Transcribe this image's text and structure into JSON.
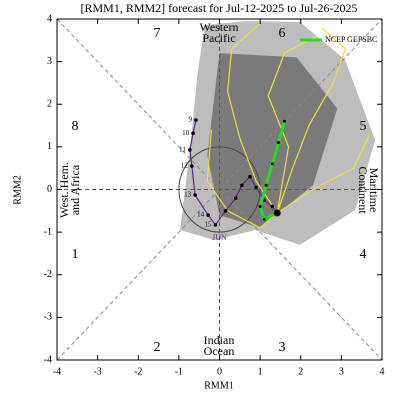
{
  "chart_data": {
    "type": "mjo-phase",
    "title": "[RMM1, RMM2] forecast for Jul-12-2025 to Jul-26-2025",
    "x_label": "RMM1",
    "y_label": "RMM2",
    "xlim": [
      -4,
      4
    ],
    "ylim": [
      -4,
      4
    ],
    "xticks": [
      -4,
      -3,
      -2,
      -1,
      0,
      1,
      2,
      3,
      4
    ],
    "yticks": [
      -4,
      -3,
      -2,
      -1,
      0,
      1,
      2,
      3,
      4
    ],
    "phases": [
      1,
      2,
      3,
      4,
      5,
      6,
      7,
      8
    ],
    "regions": [
      "West. Hem. and Africa",
      "Indian Ocean",
      "Maritime Continent",
      "Western Pacific"
    ],
    "spread": [
      {
        "color": "#bdbdbd",
        "x": [
          -0.36,
          0.63,
          1.98,
          3.09,
          3.83,
          3.34,
          1.98,
          0.87,
          -0.11,
          -0.97,
          -0.73,
          -0.53
        ],
        "y": [
          3.86,
          3.95,
          3.93,
          3.04,
          1.16,
          -0.48,
          -1.3,
          -0.95,
          -1.19,
          -0.95,
          0.93,
          2.8
        ]
      },
      {
        "color": "#7a7a7a",
        "x": [
          0.0,
          1.9,
          2.9,
          2.3,
          1.0,
          0.0,
          -0.3
        ],
        "y": [
          3.2,
          3.1,
          1.9,
          0.1,
          -0.9,
          -0.6,
          0.8
        ]
      }
    ],
    "members": [
      {
        "x": [
          1.42,
          1.8,
          2.2,
          2.8,
          3.1,
          2.5
        ],
        "y": [
          -0.55,
          0.5,
          1.5,
          2.5,
          3.3,
          3.8
        ]
      },
      {
        "x": [
          1.42,
          0.9,
          0.5,
          0.2,
          0.3,
          1.0
        ],
        "y": [
          -0.55,
          0.2,
          1.2,
          2.3,
          3.3,
          3.9
        ]
      },
      {
        "x": [
          1.42,
          2.3,
          3.3,
          3.7
        ],
        "y": [
          -0.55,
          0.0,
          0.5,
          1.3
        ]
      },
      {
        "x": [
          1.42,
          1.0,
          0.2,
          -0.3,
          -0.2
        ],
        "y": [
          -0.55,
          -0.9,
          -0.5,
          0.2,
          1.4
        ]
      },
      {
        "x": [
          1.42,
          1.7,
          1.2,
          1.6,
          2.4
        ],
        "y": [
          -0.55,
          1.0,
          2.2,
          3.2,
          3.6
        ]
      }
    ],
    "member_color": "#f0e040",
    "observed": {
      "color": "#5a2a82",
      "month": "JUN",
      "x": [
        -0.58,
        -0.65,
        -0.73,
        -0.68,
        -0.6,
        -0.28,
        -0.1,
        0.15,
        0.4,
        0.55,
        0.75,
        0.9,
        1.1,
        1.3,
        1.42
      ],
      "y": [
        1.63,
        1.32,
        0.93,
        0.55,
        -0.13,
        -0.6,
        -0.83,
        -0.5,
        -0.2,
        0.1,
        0.3,
        0.05,
        -0.25,
        -0.4,
        -0.55
      ],
      "labels": [
        9,
        10,
        11,
        12,
        13,
        14,
        15,
        null,
        null,
        null,
        null,
        null,
        null,
        null,
        null
      ]
    },
    "series": [
      {
        "name": "NCEP GEPSBC",
        "color": "#22dd22",
        "x": [
          1.42,
          1.1,
          1.0,
          1.15,
          1.3,
          1.45,
          1.6
        ],
        "values": [
          -0.55,
          -0.7,
          -0.4,
          0.1,
          0.6,
          1.1,
          1.6
        ]
      }
    ]
  }
}
